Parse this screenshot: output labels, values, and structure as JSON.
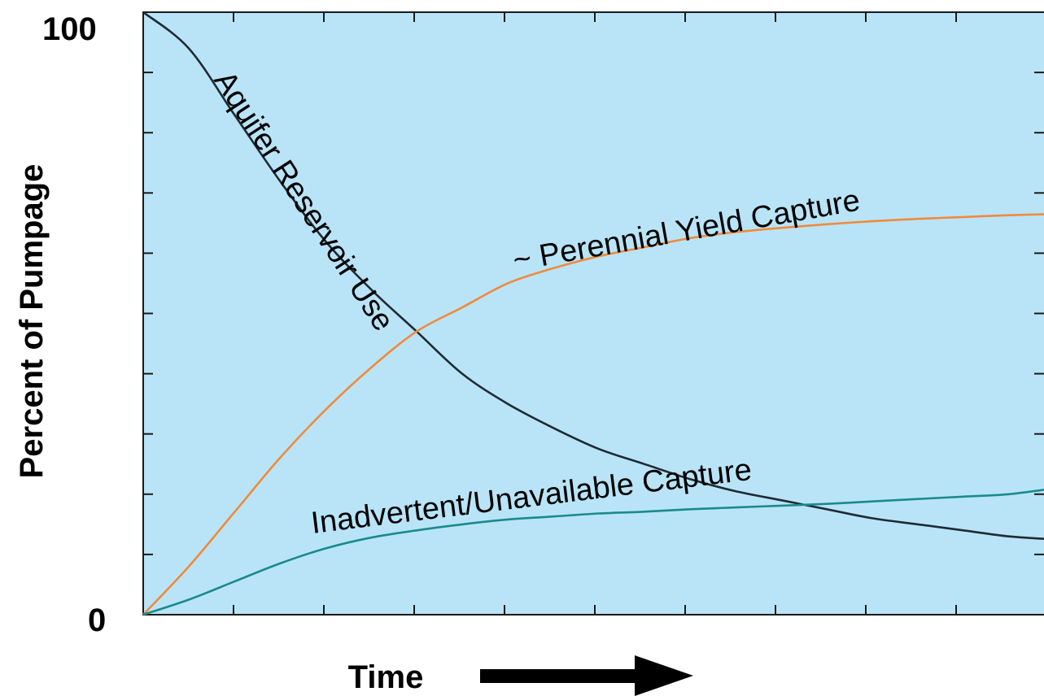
{
  "chart_data": {
    "type": "line",
    "title": "",
    "xlabel": "Time",
    "ylabel": "Percent of Pumpage",
    "ylim": [
      0,
      100
    ],
    "y_tick_labels": [
      "0",
      "100"
    ],
    "x_ticks_count": 10,
    "y_ticks_count": 10,
    "background_color": "#b9e4f7",
    "series": [
      {
        "name": "Aquifer Reservoir Use",
        "color": "#1f2a33",
        "x": [
          0,
          0.5,
          1,
          1.5,
          2,
          2.5,
          3,
          3.5,
          4,
          4.5,
          5,
          5.5,
          6,
          6.5,
          7,
          7.5,
          8,
          8.5,
          9,
          9.5,
          10
        ],
        "y": [
          100,
          94,
          83,
          72,
          62,
          54,
          47,
          40,
          35,
          31,
          27.5,
          25,
          22.5,
          20.5,
          19,
          17.5,
          16,
          15,
          14,
          13,
          12.5
        ]
      },
      {
        "name": "~ Perennial Yield Capture",
        "color": "#f08a3c",
        "x": [
          0,
          0.5,
          1,
          1.5,
          2,
          2.5,
          3,
          3.5,
          4,
          4.5,
          5,
          5.5,
          6,
          6.5,
          7,
          7.5,
          8,
          8.5,
          9,
          9.5,
          10
        ],
        "y": [
          0,
          8,
          17,
          26,
          34,
          41,
          47,
          51,
          55,
          57.5,
          59.5,
          61,
          62.5,
          63.5,
          64.2,
          64.8,
          65.3,
          65.7,
          66,
          66.3,
          66.5
        ]
      },
      {
        "name": "Inadvertent/Unavailable Capture",
        "color": "#1a8a8c",
        "x": [
          0,
          0.5,
          1,
          1.5,
          2,
          2.5,
          3,
          3.5,
          4,
          4.5,
          5,
          5.5,
          6,
          6.5,
          7,
          7.5,
          8,
          8.5,
          9,
          9.5,
          10
        ],
        "y": [
          0,
          2.5,
          5.5,
          8.5,
          11,
          12.8,
          14,
          15,
          15.8,
          16.3,
          16.8,
          17.1,
          17.5,
          17.8,
          18.1,
          18.4,
          18.8,
          19.2,
          19.6,
          20,
          21
        ]
      }
    ]
  }
}
